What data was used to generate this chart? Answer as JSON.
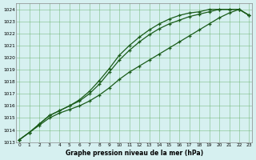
{
  "xlabel": "Graphe pression niveau de la mer (hPa)",
  "ylim": [
    1013,
    1024.5
  ],
  "xlim": [
    -0.3,
    23.3
  ],
  "yticks": [
    1013,
    1014,
    1015,
    1016,
    1017,
    1018,
    1019,
    1020,
    1021,
    1022,
    1023,
    1024
  ],
  "xticks": [
    0,
    1,
    2,
    3,
    4,
    5,
    6,
    7,
    8,
    9,
    10,
    11,
    12,
    13,
    14,
    15,
    16,
    17,
    18,
    19,
    20,
    21,
    22,
    23
  ],
  "bg_color": "#d6f0f0",
  "grid_color": "#5aaa5a",
  "line_color": "#1a5c1a",
  "hours": [
    0,
    1,
    2,
    3,
    4,
    5,
    6,
    7,
    8,
    9,
    10,
    11,
    12,
    13,
    14,
    15,
    16,
    17,
    18,
    19,
    20,
    21,
    22,
    23
  ],
  "line1": [
    1013.2,
    1013.8,
    1014.5,
    1015.2,
    1015.6,
    1016.0,
    1016.5,
    1017.2,
    1018.1,
    1019.1,
    1020.2,
    1021.0,
    1021.7,
    1022.3,
    1022.8,
    1023.2,
    1023.5,
    1023.7,
    1023.8,
    1024.0,
    1024.0,
    1024.0,
    1024.0,
    1023.5
  ],
  "line2": [
    1013.2,
    1013.8,
    1014.5,
    1015.2,
    1015.6,
    1016.0,
    1016.4,
    1017.0,
    1017.8,
    1018.8,
    1019.8,
    1020.6,
    1021.3,
    1021.9,
    1022.4,
    1022.8,
    1023.1,
    1023.4,
    1023.6,
    1023.8,
    1024.0,
    1024.0,
    1024.0,
    1023.5
  ],
  "line3": [
    1013.2,
    1013.8,
    1014.4,
    1015.0,
    1015.4,
    1015.7,
    1016.0,
    1016.4,
    1016.9,
    1017.5,
    1018.2,
    1018.8,
    1019.3,
    1019.8,
    1020.3,
    1020.8,
    1021.3,
    1021.8,
    1022.3,
    1022.8,
    1023.3,
    1023.7,
    1024.0,
    1023.5
  ]
}
